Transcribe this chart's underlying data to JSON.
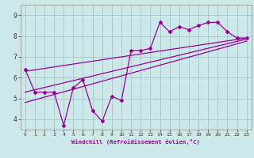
{
  "xlabel": "Windchill (Refroidissement éolien,°C)",
  "bg_color": "#cce8e8",
  "line_color": "#990099",
  "grid_color": "#aacccc",
  "xlim": [
    -0.5,
    23.5
  ],
  "ylim": [
    3.5,
    9.5
  ],
  "yticks": [
    4,
    5,
    6,
    7,
    8,
    9
  ],
  "xticks": [
    0,
    1,
    2,
    3,
    4,
    5,
    6,
    7,
    8,
    9,
    10,
    11,
    12,
    13,
    14,
    15,
    16,
    17,
    18,
    19,
    20,
    21,
    22,
    23
  ],
  "data_x": [
    0,
    1,
    2,
    3,
    4,
    5,
    6,
    7,
    8,
    9,
    10,
    11,
    12,
    13,
    14,
    15,
    16,
    17,
    18,
    19,
    20,
    21,
    22,
    23
  ],
  "data_y": [
    6.4,
    5.3,
    5.3,
    5.3,
    3.7,
    5.5,
    5.9,
    4.4,
    3.9,
    5.1,
    4.9,
    7.3,
    7.3,
    7.4,
    8.65,
    8.2,
    8.45,
    8.3,
    8.5,
    8.65,
    8.65,
    8.2,
    7.9,
    7.9
  ],
  "trend1_x": [
    0,
    23
  ],
  "trend1_y": [
    5.3,
    7.85
  ],
  "trend2_x": [
    0,
    23
  ],
  "trend2_y": [
    6.3,
    7.9
  ],
  "trend3_x": [
    0,
    23
  ],
  "trend3_y": [
    4.8,
    7.75
  ]
}
